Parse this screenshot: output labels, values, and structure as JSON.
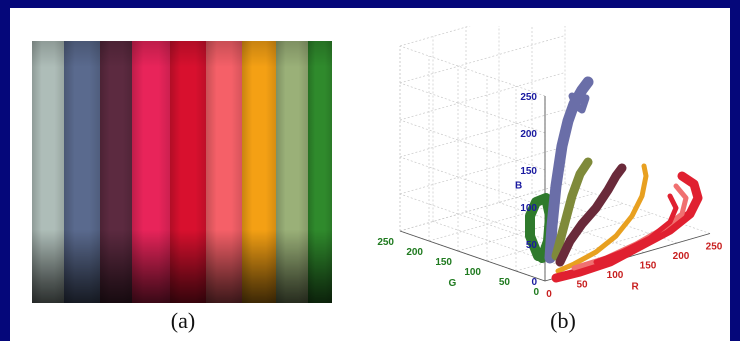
{
  "captions": {
    "a": "(a)",
    "b": "(b)"
  },
  "stripes": [
    {
      "name": "stripe-light-gray",
      "color": "#aebdb8"
    },
    {
      "name": "stripe-slate-blue",
      "color": "#5a6a8e"
    },
    {
      "name": "stripe-dark-maroon",
      "color": "#5c2a40"
    },
    {
      "name": "stripe-pink",
      "color": "#e8245a"
    },
    {
      "name": "stripe-red",
      "color": "#d8102e"
    },
    {
      "name": "stripe-salmon",
      "color": "#f56068"
    },
    {
      "name": "stripe-orange",
      "color": "#f4a014"
    },
    {
      "name": "stripe-sage",
      "color": "#9ab078"
    },
    {
      "name": "stripe-green",
      "color": "#2f8a2c"
    }
  ],
  "plot": {
    "axis_b": {
      "label": "B",
      "ticks": [
        "250",
        "200",
        "150",
        "100",
        "50",
        "0"
      ],
      "color": "#1a1aa0"
    },
    "axis_g": {
      "label": "G",
      "ticks": [
        "250",
        "200",
        "150",
        "100",
        "50",
        "0"
      ],
      "color": "#1f7a1f"
    },
    "axis_r": {
      "label": "R",
      "ticks": [
        "0",
        "50",
        "100",
        "150",
        "200",
        "250"
      ],
      "color": "#c82020"
    },
    "cluster_colors": [
      "#2f7a2c",
      "#6a6ea8",
      "#7f8a3a",
      "#6a2a3a",
      "#e8a020",
      "#e02030",
      "#f07070"
    ]
  }
}
